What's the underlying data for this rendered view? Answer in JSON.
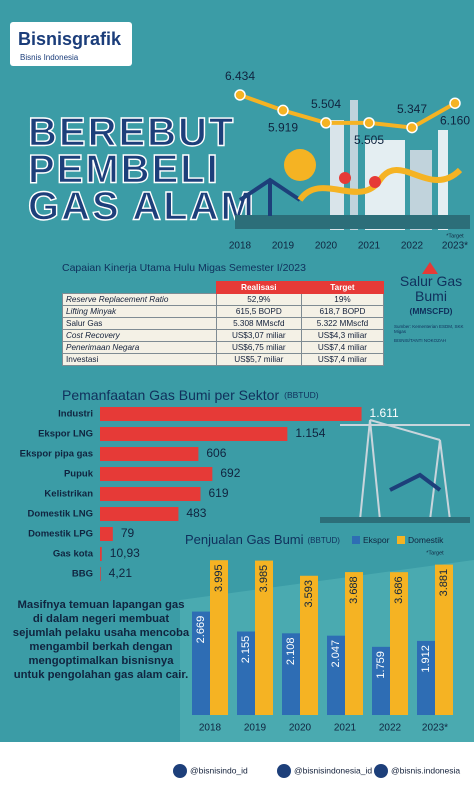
{
  "header": {
    "logo": "Bisnisgrafik",
    "publisher": "Bisnis Indonesia",
    "title_lines": [
      "BEREBUT",
      "PEMBELI",
      "GAS ALAM"
    ]
  },
  "table": {
    "title": "Capaian Kinerja Utama Hulu Migas Semester I/2023",
    "columns": [
      "Realisasi",
      "Target"
    ],
    "rows": [
      [
        "Reserve Replacement Ratio",
        "52,9%",
        "19%"
      ],
      [
        "Lifting Minyak",
        "615,5 BOPD",
        "618,7 BOPD"
      ],
      [
        "Salur Gas",
        "5.308 MMscfd",
        "5.322 MMscfd"
      ],
      [
        "Cost Recovery",
        "US$3,07 miliar",
        "US$4,3 miliar"
      ],
      [
        "Penerimaan Negara",
        "US$6,75 miliar",
        "US$7,4 miliar"
      ],
      [
        "Investasi",
        "US$5,7 miliar",
        "US$7,4 miliar"
      ]
    ]
  },
  "chart_data": [
    {
      "type": "line",
      "title": "Salur Gas Bumi",
      "unit": "(MMSCFD)",
      "note": "*Target",
      "categories": [
        "2018",
        "2019",
        "2020",
        "2021",
        "2022",
        "2023*"
      ],
      "values": [
        6434,
        5919,
        5504,
        5505,
        5347,
        6160
      ],
      "value_labels": [
        "6.434",
        "5.919",
        "5.504",
        "5.505",
        "5.347",
        "6.160"
      ],
      "color": "#f5b323",
      "ylim": [
        5000,
        7000
      ]
    },
    {
      "type": "barh",
      "title": "Pemanfaatan Gas Bumi per Sektor",
      "unit": "(BBTUD)",
      "categories": [
        "Industri",
        "Ekspor LNG",
        "Ekspor pipa gas",
        "Pupuk",
        "Kelistrikan",
        "Domestik LNG",
        "Domestik LPG",
        "Gas kota",
        "BBG"
      ],
      "values": [
        1611,
        1154,
        606,
        692,
        619,
        483,
        79,
        10.93,
        4.21
      ],
      "value_labels": [
        "1.611",
        "1.154",
        "606",
        "692",
        "619",
        "483",
        "79",
        "10,93",
        "4,21"
      ],
      "color": "#e63a37",
      "xlim": [
        0,
        1700
      ]
    },
    {
      "type": "grouped_bar",
      "title": "Penjualan Gas Bumi",
      "unit": "(BBTUD)",
      "note": "*Target",
      "categories": [
        "2018",
        "2019",
        "2020",
        "2021",
        "2022",
        "2023*"
      ],
      "series": [
        {
          "name": "Ekspor",
          "color": "#2e6db4",
          "values": [
            2669,
            2155,
            2108,
            2047,
            1759,
            1912
          ],
          "value_labels": [
            "2.669",
            "2.155",
            "2.108",
            "2.047",
            "1.759",
            "1.912"
          ]
        },
        {
          "name": "Domestik",
          "color": "#f5b323",
          "values": [
            3995,
            3985,
            3593,
            3688,
            3686,
            3881
          ],
          "value_labels": [
            "3.995",
            "3.985",
            "3.593",
            "3.688",
            "3.686",
            "3.881"
          ]
        }
      ],
      "ylim": [
        0,
        4000
      ]
    }
  ],
  "sources": {
    "source": "Sumber: Kementerian ESDM, SKK Migas",
    "credit": "BISNIS/TANTI NOKOZAH"
  },
  "text": "Masifnya temuan lapangan gas di dalam negeri membuat sejumlah pelaku usaha mencoba mengambil berkah dengan mengoptimalkan bisnisnya untuk pengolahan gas alam cair.",
  "footer": {
    "handles": [
      "@bisnisindo_id",
      "@bisnisindonesia_id",
      "@bisnis.indonesia"
    ]
  }
}
